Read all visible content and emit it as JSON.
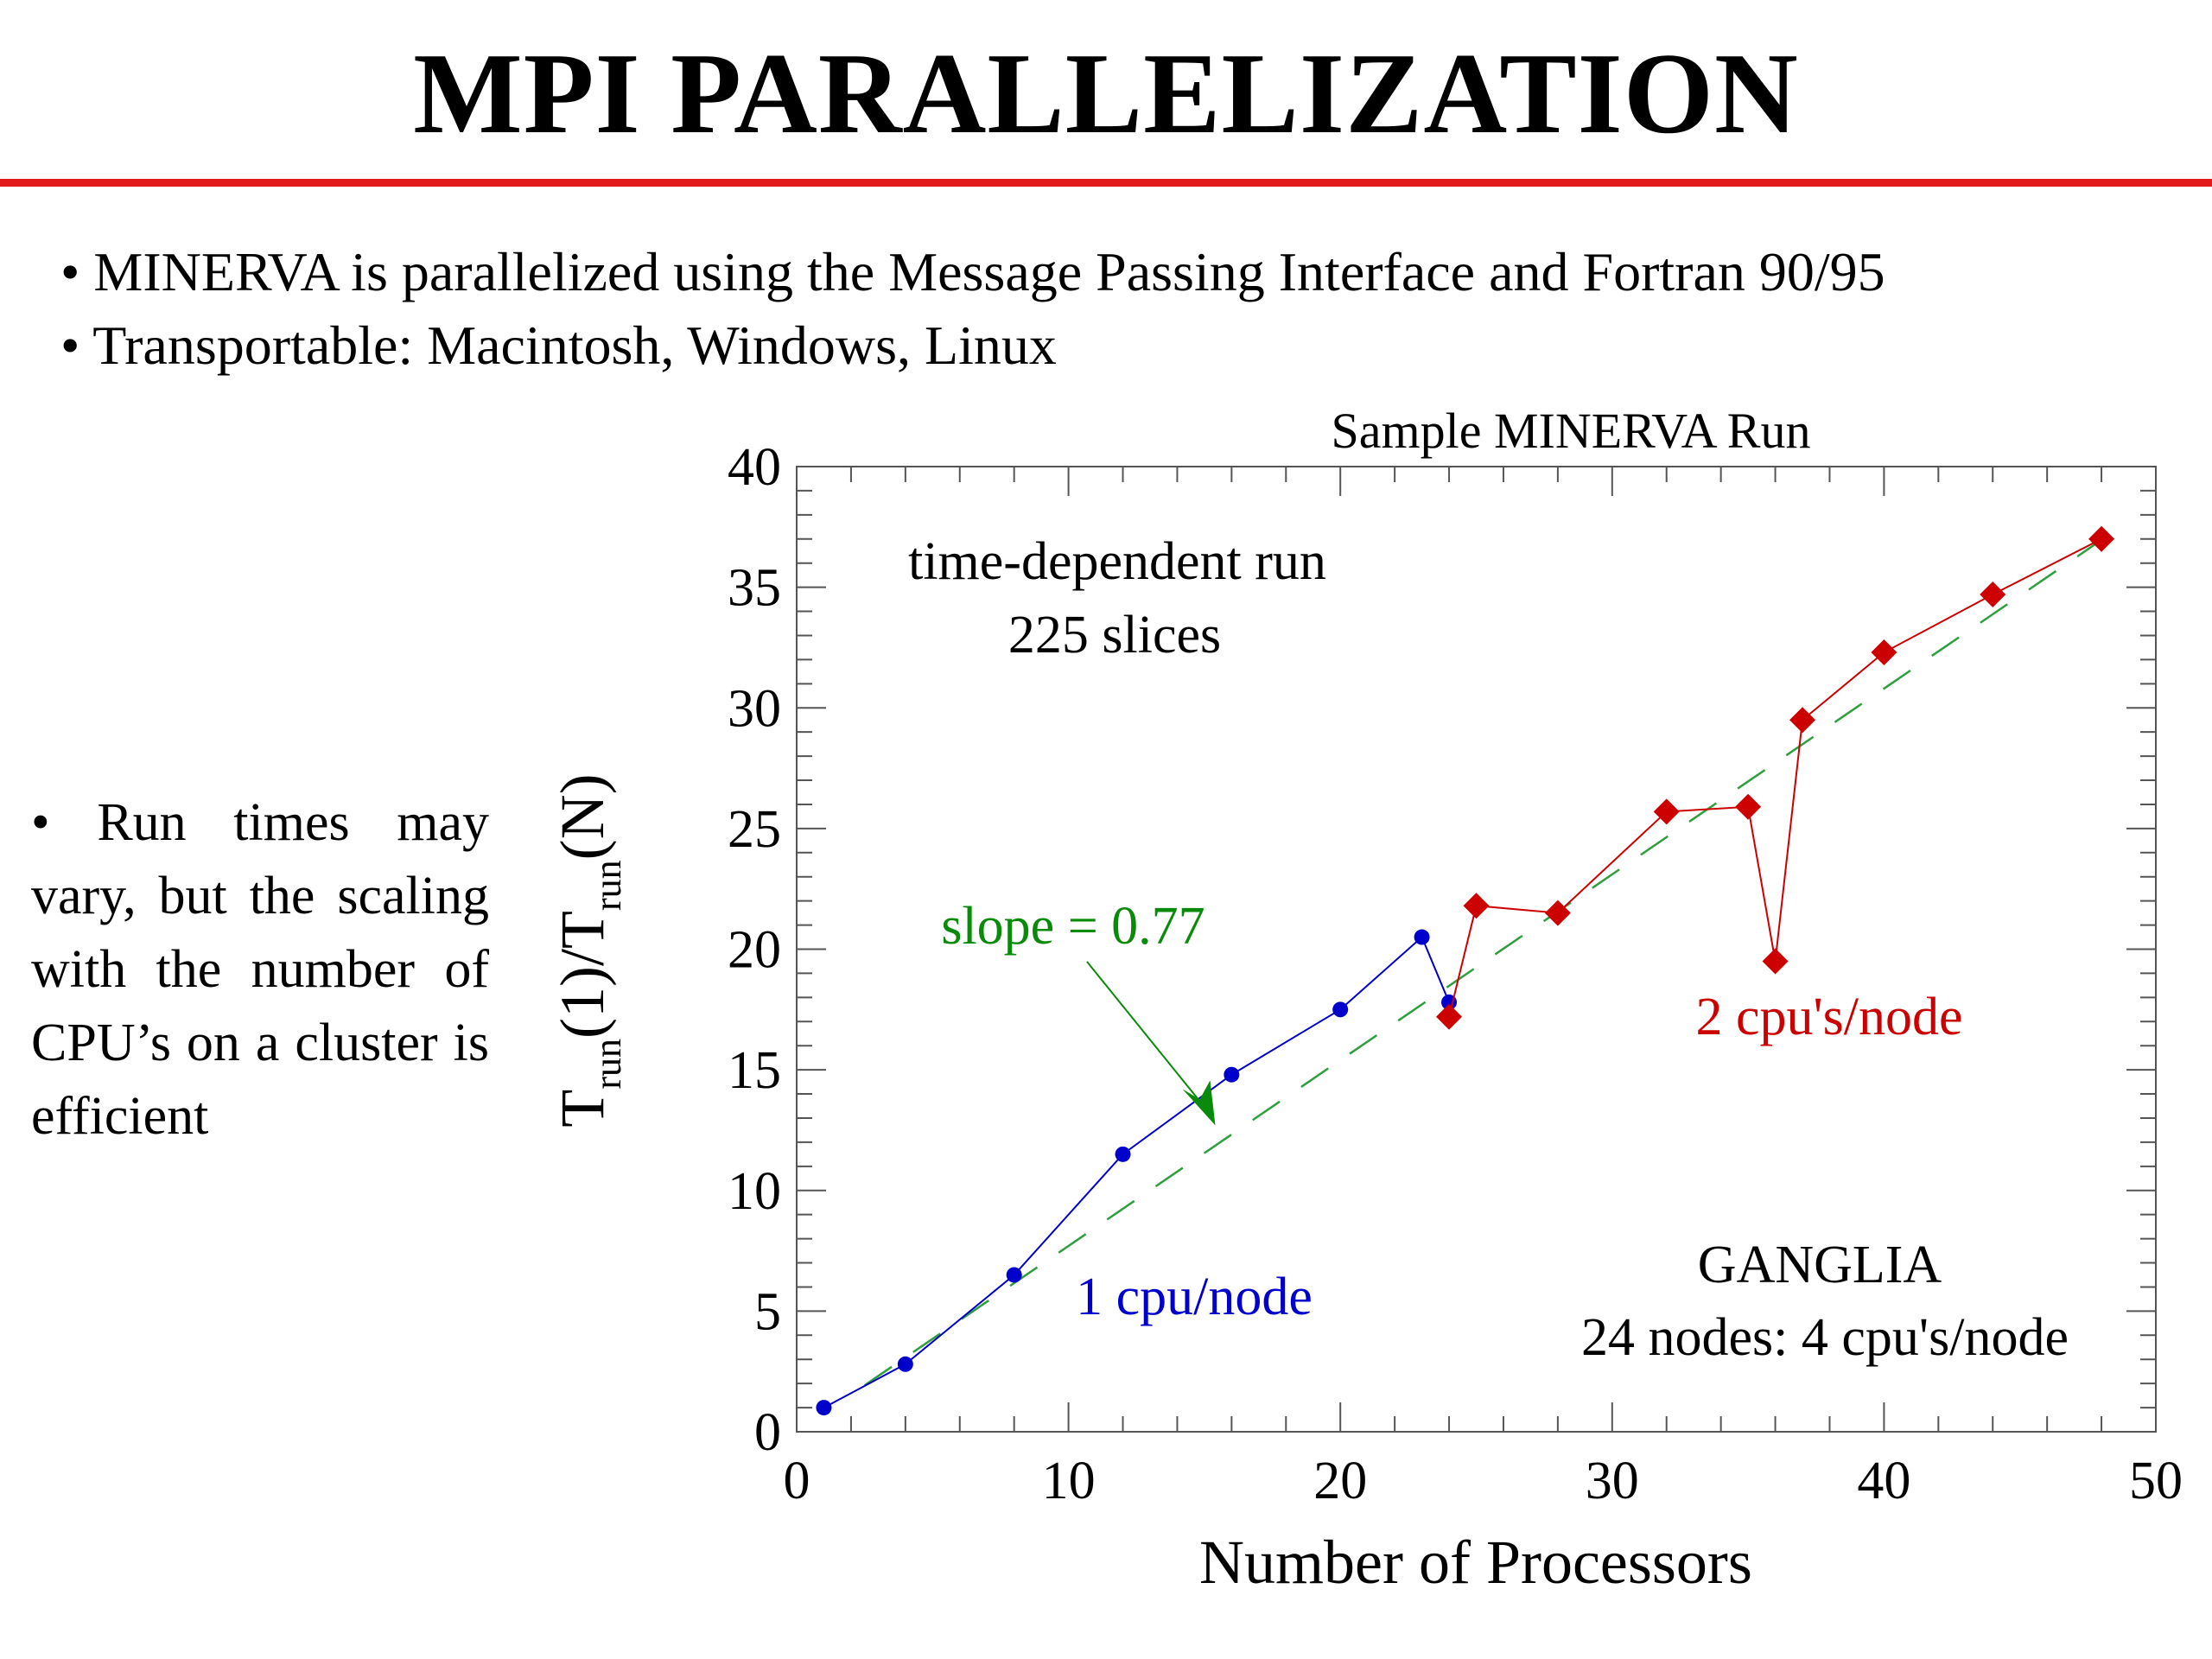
{
  "slide": {
    "title": "MPI PARALLELIZATION",
    "bullets": [
      "• MINERVA is parallelized using the Message Passing Interface and Fortran 90/95",
      "• Transportable: Macintosh, Windows, Linux"
    ],
    "side_note": "• Run times may vary, but the scaling with the number of CPU’s on a cluster is efficient",
    "accent_color": "#e31a1c"
  },
  "chart_data": {
    "type": "line",
    "title": "Sample MINERVA Run",
    "xlabel": "Number of Processors",
    "ylabel": {
      "parts": [
        {
          "text": "T",
          "style": "normal"
        },
        {
          "text": "run",
          "style": "sub"
        },
        {
          "text": "(1)/T",
          "style": "normal"
        },
        {
          "text": "run",
          "style": "sub"
        },
        {
          "text": "(N)",
          "style": "normal"
        }
      ]
    },
    "xlim": [
      0,
      50
    ],
    "ylim": [
      0,
      40
    ],
    "x_major_ticks": [
      0,
      10,
      20,
      30,
      40,
      50
    ],
    "y_major_ticks": [
      0,
      5,
      10,
      15,
      20,
      25,
      30,
      35,
      40
    ],
    "x_minor_step": 2,
    "y_minor_step": 1,
    "grid": false,
    "series": [
      {
        "name": "1 cpu/node",
        "color": "#0000cc",
        "marker": "circle",
        "x": [
          1,
          4,
          8,
          12,
          16,
          20,
          23,
          24
        ],
        "y": [
          1.0,
          2.8,
          6.5,
          11.5,
          14.8,
          17.5,
          20.5,
          17.8
        ]
      },
      {
        "name": "2 cpu's/node",
        "color": "#cc0000",
        "marker": "diamond",
        "x": [
          24,
          25,
          28,
          32,
          35,
          36,
          37,
          40,
          44,
          48
        ],
        "y": [
          17.2,
          21.8,
          21.5,
          25.7,
          25.9,
          19.5,
          29.5,
          32.3,
          34.7,
          37.0
        ]
      }
    ],
    "fit_line": {
      "slope": 0.77,
      "intercept": 0.0,
      "x_range": [
        2.5,
        48
      ],
      "color": "#2e9e3e",
      "style": "dashed"
    },
    "annotations": [
      {
        "key": "run_type",
        "text": "time-dependent run",
        "color": "#000000"
      },
      {
        "key": "slices",
        "text": "225 slices",
        "color": "#000000"
      },
      {
        "key": "slope",
        "text": "slope = 0.77",
        "color": "#0a8a0a"
      },
      {
        "key": "cpu1",
        "text": "1 cpu/node",
        "color": "#0000cc"
      },
      {
        "key": "cpu2",
        "text": "2 cpu's/node",
        "color": "#cc0000"
      },
      {
        "key": "ganglia",
        "text": "GANGLIA",
        "color": "#000000"
      },
      {
        "key": "nodes",
        "text": "24 nodes: 4 cpu's/node",
        "color": "#000000"
      }
    ],
    "slope_arrow": {
      "tip": [
        15.4,
        12.7
      ],
      "color": "#0a8a0a"
    }
  }
}
